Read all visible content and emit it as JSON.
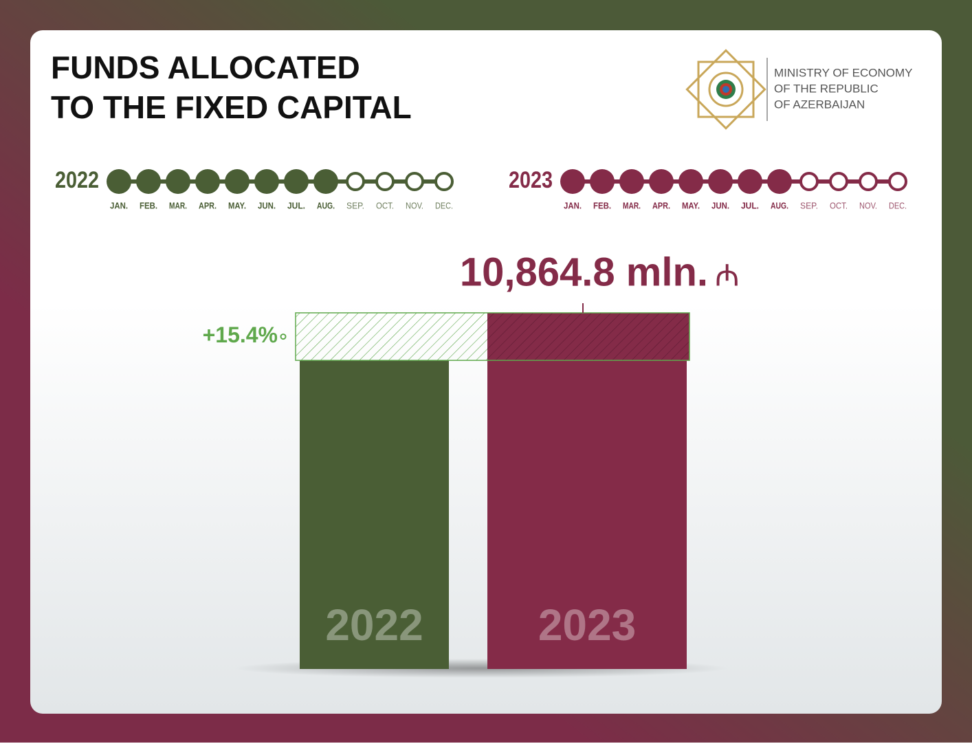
{
  "header": {
    "title": [
      "FUNDS ALLOCATED",
      "TO THE FIXED CAPITAL"
    ],
    "organization": [
      "MINISTRY OF ECONOMY",
      "OF THE REPUBLIC",
      "OF AZERBAIJAN"
    ]
  },
  "timelines": {
    "months": [
      "JAN.",
      "FEB.",
      "MAR.",
      "APR.",
      "MAY.",
      "JUN.",
      "JUL.",
      "AUG.",
      "SEP.",
      "OCT.",
      "NOV.",
      "DEC."
    ],
    "items": [
      {
        "year": "2022",
        "color": "#4a5e35",
        "covered": [
          true,
          true,
          true,
          true,
          true,
          true,
          true,
          true,
          false,
          false,
          false,
          false
        ]
      },
      {
        "year": "2023",
        "color": "#842b48",
        "covered": [
          true,
          true,
          true,
          true,
          true,
          true,
          true,
          true,
          false,
          false,
          false,
          false
        ]
      }
    ]
  },
  "chart_data": {
    "type": "bar",
    "categories": [
      "2022",
      "2023"
    ],
    "values": [
      9414.9,
      10864.8
    ],
    "value_labels": [
      null,
      "10,864.8 mln."
    ],
    "currency": "₼",
    "change_label": "+15.4%",
    "colors": [
      "#4a5e35",
      "#842b48"
    ],
    "change_color": "#5fa84c",
    "ylim": [
      0,
      10864.8
    ]
  }
}
